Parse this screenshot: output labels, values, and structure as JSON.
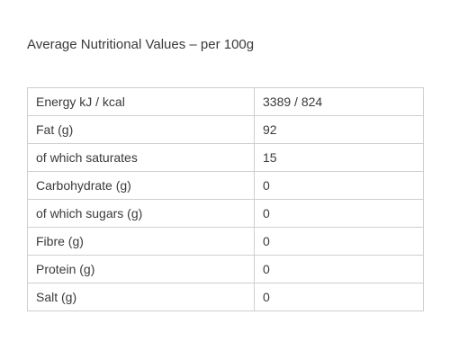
{
  "heading": "Average Nutritional Values – per 100g",
  "rows": [
    {
      "label": "Energy kJ / kcal",
      "value": "3389 / 824"
    },
    {
      "label": "Fat (g)",
      "value": "92"
    },
    {
      "label": "of which saturates",
      "value": "15"
    },
    {
      "label": "Carbohydrate (g)",
      "value": "0"
    },
    {
      "label": "of which sugars (g)",
      "value": "0"
    },
    {
      "label": "Fibre (g)",
      "value": "0"
    },
    {
      "label": "Protein (g)",
      "value": "0"
    },
    {
      "label": "Salt (g)",
      "value": "0"
    }
  ]
}
